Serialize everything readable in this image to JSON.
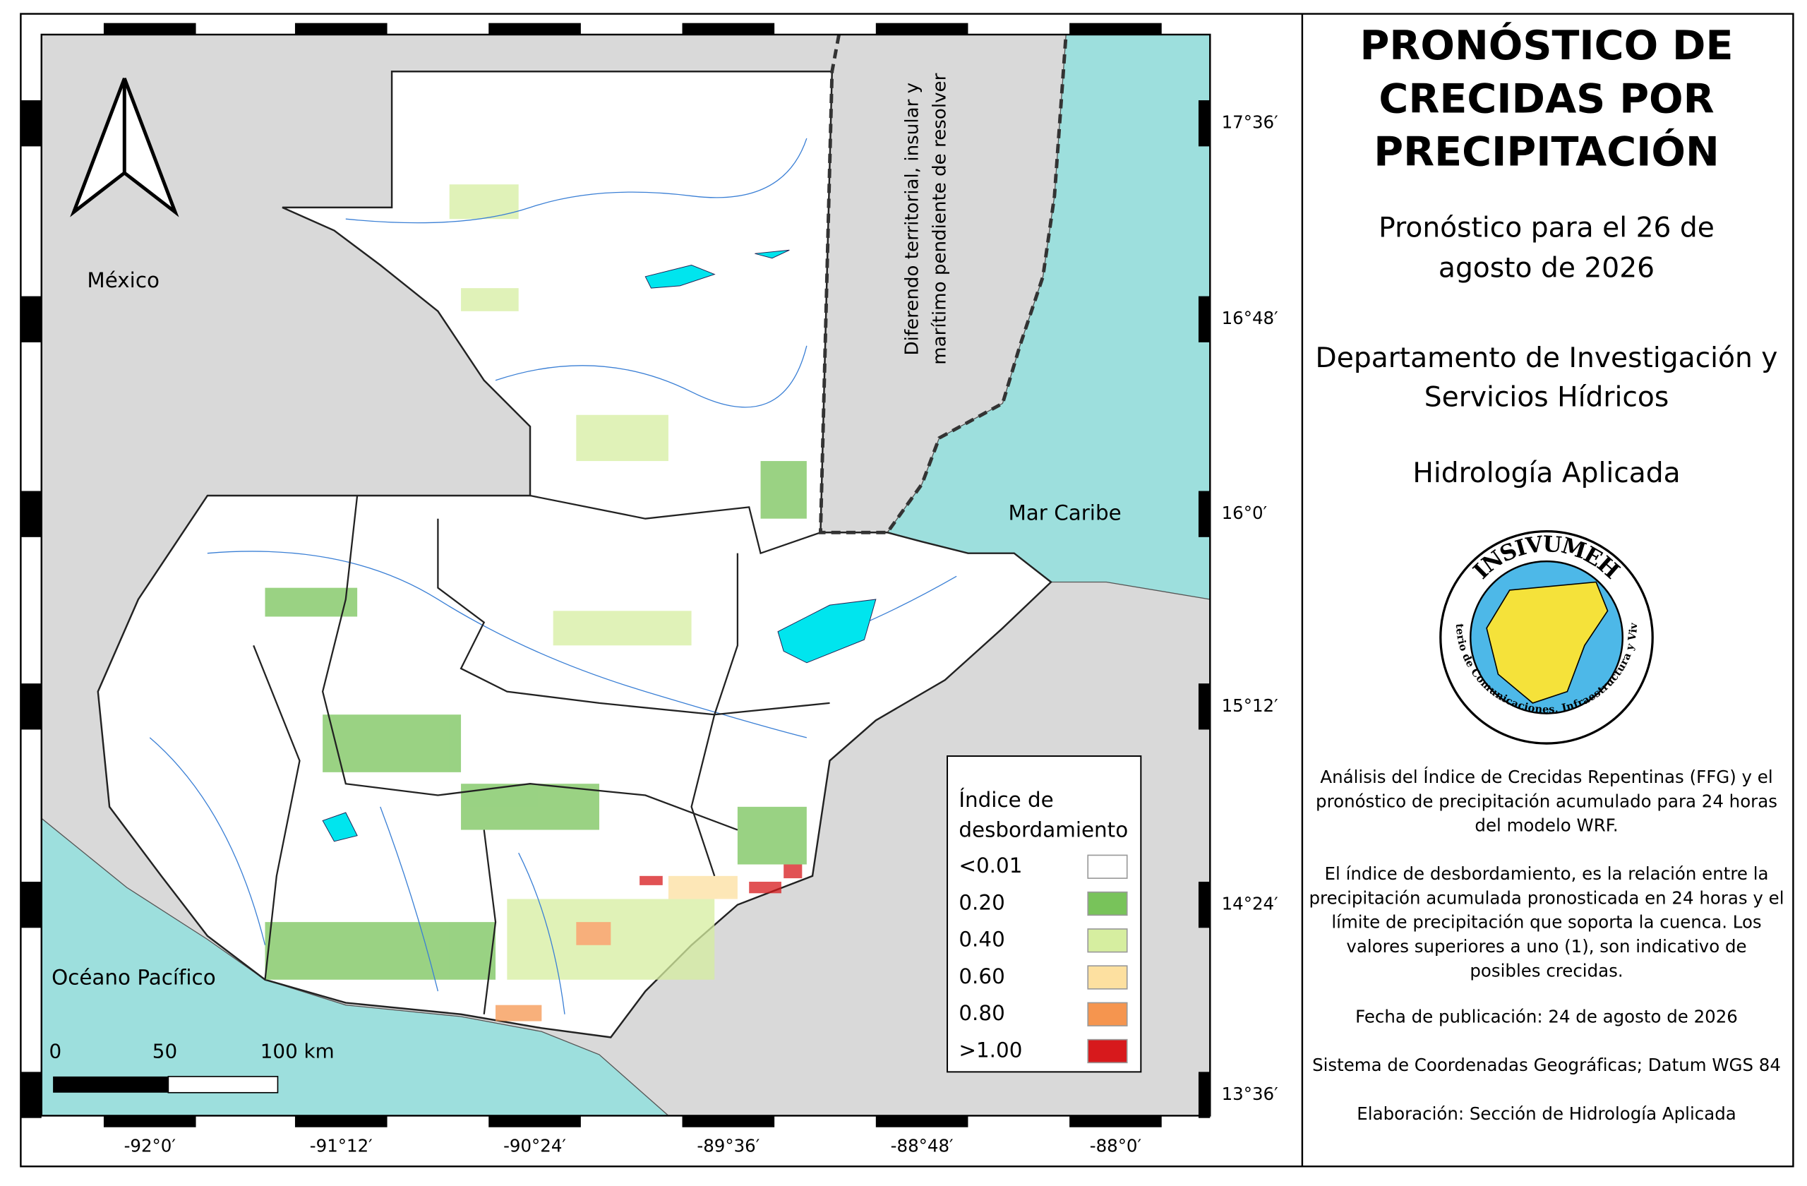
{
  "title_lines": [
    "PRONÓSTICO DE",
    "CRECIDAS POR",
    "PRECIPITACIÓN"
  ],
  "forecast_lines": [
    "Pronóstico para el 26 de",
    "agosto de 2026"
  ],
  "department_lines": [
    "Departamento de Investigación y",
    "Servicios Hídricos"
  ],
  "section": "Hidrología Aplicada",
  "logo": {
    "name": "INSIVUMEH",
    "ministry": "Ministerio de Comunicaciones, Infraestructura y Vivienda"
  },
  "description_1_lines": [
    "Análisis del Índice de Crecidas Repentinas (FFG) y el",
    "pronóstico de precipitación acumulado para 24 horas",
    "del modelo WRF."
  ],
  "description_2_lines": [
    "El índice de desbordamiento, es la relación entre la",
    "precipitación acumulada pronosticada en 24 horas y el",
    "límite de precipitación que soporta la cuenca. Los",
    "valores superiores a uno (1), son indicativo de",
    "posibles crecidas."
  ],
  "publication_date": "Fecha de publicación: 24 de agosto de 2026",
  "coordinate_system": "Sistema de Coordenadas Geográficas; Datum WGS 84",
  "prepared_by": "Elaboración: Sección de Hidrología Aplicada",
  "map": {
    "labels": {
      "mexico": "México",
      "caribbean": "Mar Caribe",
      "pacific": "Océano Pacífico",
      "dispute_lines": [
        "Diferendo    territorial,    insular    y",
        "marítimo pendiente de resolver"
      ]
    },
    "lat_ticks": [
      "17°36′",
      "16°48′",
      "16°0′",
      "15°12′",
      "14°24′",
      "13°36′"
    ],
    "lon_ticks": [
      "-92°0′",
      "-91°12′",
      "-90°24′",
      "-89°36′",
      "-88°48′",
      "-88°0′"
    ],
    "scale_bar": [
      "0",
      "50",
      "100 km"
    ],
    "legend": {
      "title_lines": [
        "Índice de",
        "desbordamiento"
      ],
      "items": [
        {
          "label": "<0.01",
          "color": "#ffffff"
        },
        {
          "label": "0.20",
          "color": "#78c35a"
        },
        {
          "label": "0.40",
          "color": "#d6eea0"
        },
        {
          "label": "0.60",
          "color": "#fde0a0"
        },
        {
          "label": "0.80",
          "color": "#f5954f"
        },
        {
          "label": ">1.00",
          "color": "#d7191c"
        }
      ]
    }
  }
}
